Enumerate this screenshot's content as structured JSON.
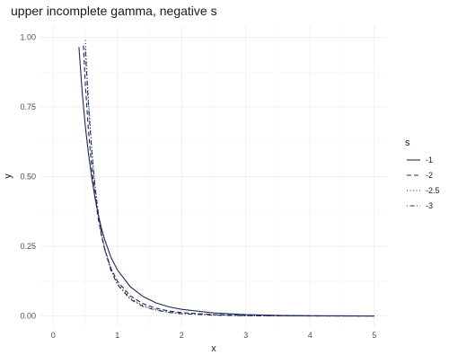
{
  "chart_data": {
    "type": "line",
    "title": "upper incomplete gamma, negative s",
    "xlabel": "x",
    "ylabel": "y",
    "xlim": [
      -0.2,
      5.2
    ],
    "ylim": [
      -0.04,
      1.04
    ],
    "x_ticks": [
      0,
      1,
      2,
      3,
      4,
      5
    ],
    "x_tick_labels": [
      "0",
      "1",
      "2",
      "3",
      "4",
      "5"
    ],
    "y_ticks": [
      0,
      0.25,
      0.5,
      0.75,
      1.0
    ],
    "y_tick_labels": [
      "0.00",
      "0.25",
      "0.50",
      "0.75",
      "1.00"
    ],
    "grid": true,
    "legend": {
      "title": "s",
      "position": "right"
    },
    "color": "#1f2a5a",
    "series": [
      {
        "name": "-1",
        "linetype": "solid",
        "x": [
          0.4,
          0.45,
          0.5,
          0.55,
          0.6,
          0.65,
          0.7,
          0.75,
          0.8,
          0.9,
          1.0,
          1.2,
          1.4,
          1.6,
          1.8,
          2.0,
          2.5,
          3.0,
          3.5,
          4.0,
          4.5,
          5.0
        ],
        "values": [
          0.965,
          0.805,
          0.68,
          0.58,
          0.495,
          0.425,
          0.365,
          0.315,
          0.275,
          0.21,
          0.165,
          0.105,
          0.07,
          0.047,
          0.033,
          0.024,
          0.011,
          0.005,
          0.002,
          0.001,
          0.0005,
          0.0002
        ]
      },
      {
        "name": "-2",
        "linetype": "dashed",
        "x": [
          0.47,
          0.5,
          0.55,
          0.6,
          0.65,
          0.7,
          0.75,
          0.8,
          0.9,
          1.0,
          1.2,
          1.4,
          1.6,
          1.8,
          2.0,
          2.5,
          3.0,
          3.5,
          4.0,
          4.5,
          5.0
        ],
        "values": [
          0.97,
          0.83,
          0.66,
          0.53,
          0.43,
          0.35,
          0.29,
          0.24,
          0.17,
          0.125,
          0.072,
          0.044,
          0.028,
          0.018,
          0.012,
          0.005,
          0.002,
          0.001,
          0.0004,
          0.0002,
          0.0001
        ]
      },
      {
        "name": "-2.5",
        "linetype": "dotted",
        "x": [
          0.5,
          0.52,
          0.55,
          0.6,
          0.65,
          0.7,
          0.75,
          0.8,
          0.9,
          1.0,
          1.2,
          1.4,
          1.6,
          1.8,
          2.0,
          2.5,
          3.0,
          3.5,
          4.0,
          4.5,
          5.0
        ],
        "values": [
          0.99,
          0.9,
          0.77,
          0.6,
          0.47,
          0.375,
          0.3,
          0.245,
          0.168,
          0.118,
          0.064,
          0.037,
          0.023,
          0.014,
          0.009,
          0.004,
          0.0015,
          0.0006,
          0.0003,
          0.0001,
          0.0001
        ]
      },
      {
        "name": "-3",
        "linetype": "dotdash",
        "x": [
          0.5,
          0.52,
          0.55,
          0.6,
          0.65,
          0.7,
          0.75,
          0.8,
          0.9,
          1.0,
          1.2,
          1.4,
          1.6,
          1.8,
          2.0,
          2.5,
          3.0,
          3.5,
          4.0,
          4.5,
          5.0
        ],
        "values": [
          0.96,
          0.87,
          0.75,
          0.59,
          0.465,
          0.37,
          0.295,
          0.24,
          0.162,
          0.113,
          0.06,
          0.034,
          0.021,
          0.013,
          0.008,
          0.003,
          0.0012,
          0.0005,
          0.0002,
          0.0001,
          0.0001
        ]
      }
    ]
  }
}
